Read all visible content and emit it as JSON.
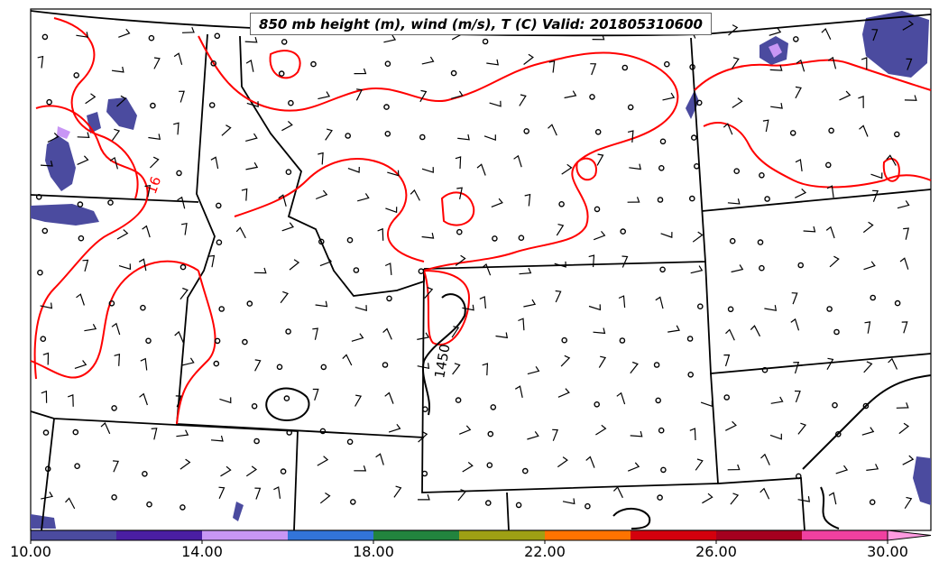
{
  "title": "850 mb height (m), wind (m/s), T (C) Valid: 201805310600",
  "temperature_contour_label": "16",
  "height_contour_label": "1450",
  "colorbar": {
    "tick_labels": [
      "10.00",
      "14.00",
      "18.00",
      "22.00",
      "26.00",
      "30.00"
    ],
    "colors": [
      "#4b4b9f",
      "#4a1ea3",
      "#c896f5",
      "#3274d9",
      "#22843e",
      "#9ea014",
      "#ff7300",
      "#d4000d",
      "#a5001f",
      "#f040a0",
      "#ff9be0"
    ]
  },
  "colors": {
    "temperature_contour": "#ff0000",
    "height_contour": "#000000",
    "state_borders": "#000000",
    "shading_dark": "#4b4b9f",
    "shading_light": "#c896f5"
  }
}
